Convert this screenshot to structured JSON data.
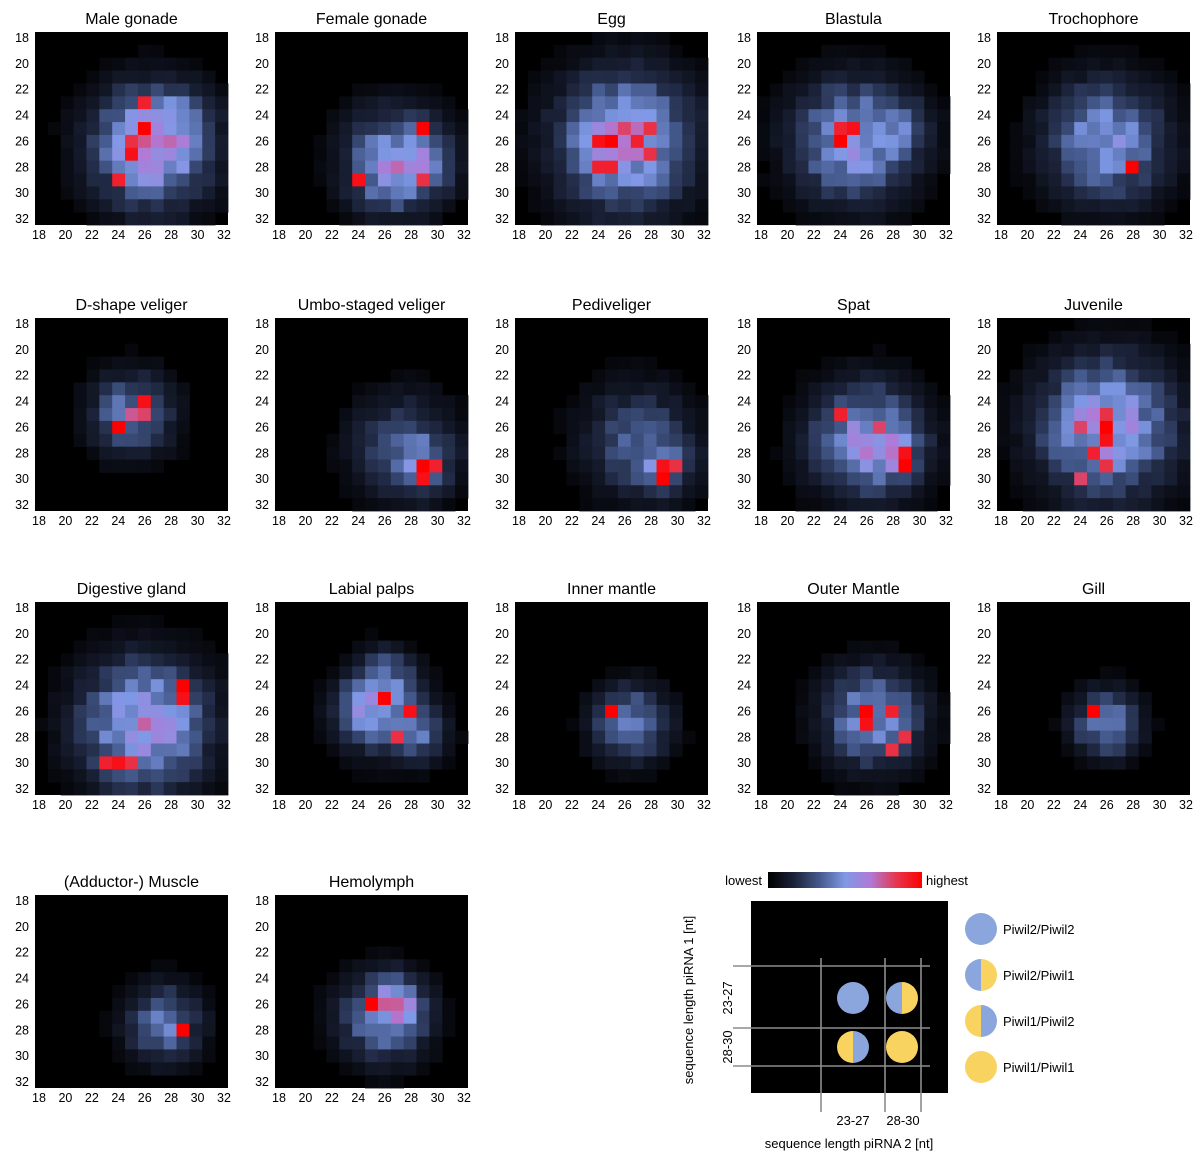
{
  "chart_data": {
    "type": "heatmap",
    "panel_titles": [
      "Male gonade",
      "Female gonade",
      "Egg",
      "Blastula",
      "Trochophore",
      "D-shape veliger",
      "Umbo-staged veliger",
      "Pediveliger",
      "Spat",
      "Juvenile",
      "Digestive gland",
      "Labial palps",
      "Inner mantle",
      "Outer Mantle",
      "Gill",
      "(Adductor-) Muscle",
      "Hemolymph"
    ],
    "x_ticks": [
      "18",
      "20",
      "22",
      "24",
      "26",
      "28",
      "30",
      "32"
    ],
    "y_ticks": [
      "18",
      "20",
      "22",
      "24",
      "26",
      "28",
      "30",
      "32"
    ],
    "axis_range": [
      18,
      32
    ],
    "color_scale": {
      "low_label": "lowest",
      "high_label": "highest",
      "stops": [
        "#000000",
        "#1b2238",
        "#44598c",
        "#7f99e6",
        "#b07ad6",
        "#e6364d",
        "#ff0000"
      ]
    },
    "schematic": {
      "xlabel": "sequence length piRNA 2 [nt]",
      "ylabel": "sequence length piRNA 1 [nt]",
      "x_groups": [
        "23-27",
        "28-30"
      ],
      "y_groups": [
        "23-27",
        "28-30"
      ]
    },
    "legend": [
      {
        "label": "Piwil2/Piwil2",
        "left": "#8aa6dd",
        "right": "#8aa6dd"
      },
      {
        "label": "Piwil2/Piwil1",
        "left": "#8aa6dd",
        "right": "#f9d35f"
      },
      {
        "label": "Piwil1/Piwil2",
        "left": "#f9d35f",
        "right": "#8aa6dd"
      },
      {
        "label": "Piwil1/Piwil1",
        "left": "#f9d35f",
        "right": "#f9d35f"
      }
    ],
    "panels": [
      {
        "hot": [
          [
            26,
            25,
            1.0
          ],
          [
            25,
            27,
            0.95
          ],
          [
            24,
            29,
            0.9
          ],
          [
            26,
            23,
            0.9
          ],
          [
            25,
            26,
            0.85
          ]
        ],
        "blobs": [
          [
            26.5,
            26.5,
            3.2,
            0.58
          ],
          [
            27,
            25.5,
            2.0,
            0.15
          ],
          [
            29,
            24,
            1.5,
            0.1
          ]
        ]
      },
      {
        "hot": [
          [
            29,
            25,
            1.0
          ],
          [
            24,
            29,
            0.95
          ],
          [
            29,
            29,
            0.85
          ]
        ],
        "blobs": [
          [
            27,
            27,
            2.8,
            0.38
          ],
          [
            29,
            28,
            1.6,
            0.22
          ],
          [
            26,
            29,
            2.0,
            0.2
          ]
        ]
      },
      {
        "hot": [
          [
            25,
            26,
            1.0
          ],
          [
            24,
            26,
            0.95
          ],
          [
            25,
            28,
            0.9
          ],
          [
            24,
            28,
            0.9
          ],
          [
            27,
            26,
            0.9
          ],
          [
            28,
            25,
            0.85
          ],
          [
            28,
            27,
            0.85
          ],
          [
            26,
            25,
            0.8
          ]
        ],
        "blobs": [
          [
            26,
            26,
            3.6,
            0.62
          ]
        ]
      },
      {
        "hot": [
          [
            24,
            26,
            1.0
          ],
          [
            25,
            25,
            0.95
          ],
          [
            24,
            25,
            0.9
          ]
        ],
        "blobs": [
          [
            25,
            26,
            3.2,
            0.55
          ],
          [
            29,
            25,
            1.5,
            0.15
          ]
        ]
      },
      {
        "hot": [
          [
            28,
            28,
            1.0
          ]
        ],
        "blobs": [
          [
            26,
            26,
            3.2,
            0.5
          ]
        ]
      },
      {
        "hot": [
          [
            24,
            26,
            1.0
          ],
          [
            26,
            24,
            0.95
          ],
          [
            26,
            25,
            0.8
          ],
          [
            25,
            25,
            0.75
          ]
        ],
        "blobs": [
          [
            25,
            25,
            2.2,
            0.42
          ]
        ]
      },
      {
        "hot": [
          [
            29,
            29,
            1.0
          ],
          [
            29,
            30,
            0.95
          ],
          [
            30,
            29,
            0.9
          ]
        ],
        "blobs": [
          [
            27.5,
            27.5,
            2.8,
            0.3
          ],
          [
            29,
            29,
            1.5,
            0.25
          ]
        ]
      },
      {
        "hot": [
          [
            29,
            30,
            1.0
          ],
          [
            29,
            29,
            0.95
          ],
          [
            30,
            29,
            0.85
          ]
        ],
        "blobs": [
          [
            27,
            27,
            3.0,
            0.3
          ],
          [
            29,
            29,
            1.6,
            0.25
          ]
        ]
      },
      {
        "hot": [
          [
            24,
            25,
            0.9
          ],
          [
            29,
            29,
            1.0
          ],
          [
            29,
            28,
            0.95
          ],
          [
            27,
            26,
            0.8
          ]
        ],
        "blobs": [
          [
            26,
            27,
            3.0,
            0.52
          ],
          [
            28,
            28,
            1.6,
            0.2
          ]
        ]
      },
      {
        "hot": [
          [
            26,
            26,
            1.0
          ],
          [
            26,
            27,
            0.95
          ],
          [
            25,
            28,
            0.9
          ],
          [
            26,
            25,
            0.85
          ],
          [
            26,
            29,
            0.85
          ],
          [
            24,
            30,
            0.8
          ],
          [
            24,
            26,
            0.8
          ]
        ],
        "blobs": [
          [
            26,
            26,
            3.6,
            0.6
          ]
        ]
      },
      {
        "hot": [
          [
            29,
            24,
            1.0
          ],
          [
            29,
            25,
            0.95
          ],
          [
            24,
            30,
            0.95
          ],
          [
            23,
            30,
            0.9
          ],
          [
            25,
            30,
            0.85
          ]
        ],
        "blobs": [
          [
            26,
            27,
            3.4,
            0.6
          ]
        ]
      },
      {
        "hot": [
          [
            26,
            25,
            1.0
          ],
          [
            28,
            26,
            0.95
          ],
          [
            27,
            28,
            0.85
          ]
        ],
        "blobs": [
          [
            26,
            26,
            2.4,
            0.35
          ],
          [
            26,
            23,
            1.4,
            0.25
          ],
          [
            24,
            26,
            1.5,
            0.22
          ],
          [
            29,
            28,
            1.4,
            0.25
          ]
        ]
      },
      {
        "hot": [
          [
            25,
            26,
            1.0
          ]
        ],
        "blobs": [
          [
            26.5,
            27,
            2.0,
            0.45
          ]
        ]
      },
      {
        "hot": [
          [
            26,
            26,
            1.0
          ],
          [
            26,
            27,
            0.95
          ],
          [
            28,
            26,
            0.9
          ],
          [
            28,
            29,
            0.85
          ],
          [
            29,
            28,
            0.85
          ]
        ],
        "blobs": [
          [
            26.5,
            26.5,
            2.6,
            0.5
          ]
        ]
      },
      {
        "hot": [
          [
            25,
            26,
            1.0
          ]
        ],
        "blobs": [
          [
            26,
            27,
            1.8,
            0.42
          ]
        ]
      },
      {
        "hot": [
          [
            29,
            28,
            1.0
          ]
        ],
        "blobs": [
          [
            27.5,
            27.5,
            2.0,
            0.42
          ]
        ]
      },
      {
        "hot": [
          [
            25,
            26,
            1.0
          ]
        ],
        "blobs": [
          [
            26,
            27,
            2.4,
            0.45
          ],
          [
            27,
            26,
            1.2,
            0.3
          ]
        ]
      }
    ]
  }
}
